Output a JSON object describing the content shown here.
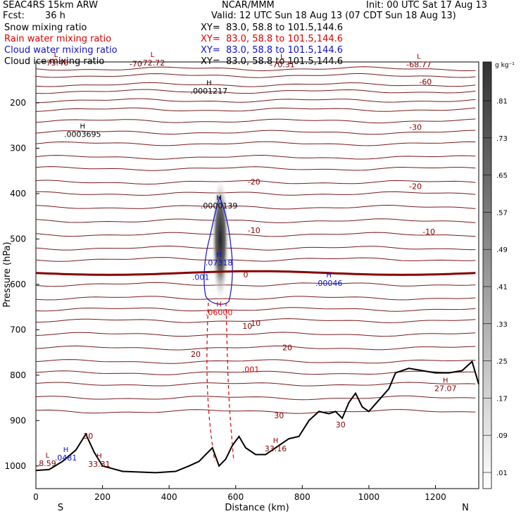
{
  "header": {
    "model": "SEAC4RS 15km ARW",
    "center": "NCAR/MMM",
    "init": "Init: 00 UTC Sat 17 Aug 13",
    "fcst_label": "Fcst:",
    "fcst_value": "36 h",
    "valid": "Valid: 12 UTC Sun 18 Aug 13 (07 CDT Sun 18 Aug 13)"
  },
  "fields": [
    {
      "name": "Snow mixing ratio",
      "xy": "XY=  83.0, 58.8 to 101.5,144.6",
      "color": "#000000"
    },
    {
      "name": "Rain water mixing ratio",
      "xy": "XY=  83.0, 58.8 to 101.5,144.6",
      "color": "#dd0000"
    },
    {
      "name": "Cloud water mixing ratio",
      "xy": "XY=  83.0, 58.8 to 101.5,144.6",
      "color": "#1010cc"
    },
    {
      "name": "Cloud ice mixing ratio",
      "xy": "XY=  83.0, 58.8 to 101.5,144.6",
      "color": "#000000"
    }
  ],
  "chart_data": {
    "type": "cross-section",
    "xlabel": "Distance (km)",
    "ylabel": "Pressure (hPa)",
    "xlim": [
      0,
      1330
    ],
    "ylim": [
      1050,
      110
    ],
    "x_ticks": [
      "0",
      "200",
      "400",
      "600",
      "800",
      "1000",
      "1200"
    ],
    "y_ticks": [
      "200",
      "300",
      "400",
      "500",
      "600",
      "700",
      "800",
      "900",
      "1000"
    ],
    "endpoints": {
      "left": "S",
      "right": "N"
    },
    "colorbar": {
      "unit": "g kg⁻¹",
      "ticks": [
        ".01",
        ".09",
        ".17",
        ".25",
        ".33",
        ".41",
        ".49",
        ".57",
        ".65",
        ".73",
        ".81"
      ]
    },
    "temperature_contour_labels": [
      {
        "text": "-70",
        "x": 300,
        "p": 120
      },
      {
        "text": "-60",
        "x": 1170,
        "p": 160
      },
      {
        "text": "-30",
        "x": 1140,
        "p": 260
      },
      {
        "text": "-20",
        "x": 655,
        "p": 380
      },
      {
        "text": "-20",
        "x": 1140,
        "p": 390
      },
      {
        "text": "-10",
        "x": 655,
        "p": 487
      },
      {
        "text": "-10",
        "x": 1180,
        "p": 490
      },
      {
        "text": "0",
        "x": 630,
        "p": 585
      },
      {
        "text": "10",
        "x": 635,
        "p": 698
      },
      {
        "text": "10",
        "x": 660,
        "p": 692
      },
      {
        "text": "20",
        "x": 480,
        "p": 760
      },
      {
        "text": "20",
        "x": 755,
        "p": 745
      },
      {
        "text": "30",
        "x": 730,
        "p": 895
      },
      {
        "text": "30",
        "x": 157,
        "p": 940
      },
      {
        "text": "30",
        "x": 915,
        "p": 915
      }
    ],
    "extrema": [
      {
        "type": "L",
        "value": "-73.46",
        "x": 60,
        "p": 118,
        "color": "#880000"
      },
      {
        "type": "L",
        "value": "-72.72",
        "x": 350,
        "p": 118,
        "color": "#880000"
      },
      {
        "type": "L",
        "value": "-70.31",
        "x": 740,
        "p": 122,
        "color": "#880000"
      },
      {
        "type": "L",
        "value": "-68.77",
        "x": 1150,
        "p": 122,
        "color": "#880000"
      },
      {
        "type": "H",
        "value": ".0001217",
        "x": 520,
        "p": 180,
        "color": "#000000"
      },
      {
        "type": "H",
        "value": ".0003695",
        "x": 140,
        "p": 275,
        "color": "#000000"
      },
      {
        "type": "H",
        "value": ".0000139",
        "x": 550,
        "p": 433,
        "color": "#000000"
      },
      {
        "type": "H",
        "value": ".07318",
        "x": 550,
        "p": 558,
        "color": "#1010cc"
      },
      {
        "type": "H",
        "value": ".00046",
        "x": 880,
        "p": 603,
        "color": "#1010cc"
      },
      {
        "type": "H",
        "value": ".06000",
        "x": 550,
        "p": 668,
        "color": "#dd0000"
      },
      {
        "type": "H",
        "value": "27.07",
        "x": 1230,
        "p": 835,
        "color": "#880000"
      },
      {
        "type": "H",
        "value": "33.16",
        "x": 720,
        "p": 968,
        "color": "#880000"
      },
      {
        "type": "H",
        "value": "33.31",
        "x": 190,
        "p": 1002,
        "color": "#880000"
      },
      {
        "type": "H",
        "value": ".0481",
        "x": 90,
        "p": 988,
        "color": "#1010cc"
      },
      {
        "type": "L",
        "value": "8.59",
        "x": 35,
        "p": 1000,
        "color": "#880000"
      }
    ],
    "cloud_contour_labels": [
      {
        "text": ".001",
        "x": 495,
        "p": 590,
        "color": "#1010cc"
      },
      {
        "text": ".001",
        "x": 645,
        "p": 793,
        "color": "#dd0000"
      }
    ],
    "terrain_pressure": [
      [
        0,
        1010
      ],
      [
        40,
        1008
      ],
      [
        80,
        990
      ],
      [
        120,
        965
      ],
      [
        150,
        930
      ],
      [
        175,
        970
      ],
      [
        200,
        1000
      ],
      [
        260,
        1012
      ],
      [
        360,
        1015
      ],
      [
        420,
        1012
      ],
      [
        460,
        1000
      ],
      [
        490,
        990
      ],
      [
        510,
        975
      ],
      [
        530,
        960
      ],
      [
        550,
        1000
      ],
      [
        570,
        985
      ],
      [
        590,
        955
      ],
      [
        610,
        935
      ],
      [
        630,
        960
      ],
      [
        660,
        975
      ],
      [
        690,
        975
      ],
      [
        720,
        960
      ],
      [
        760,
        940
      ],
      [
        790,
        935
      ],
      [
        820,
        900
      ],
      [
        850,
        880
      ],
      [
        880,
        885
      ],
      [
        900,
        880
      ],
      [
        920,
        895
      ],
      [
        940,
        860
      ],
      [
        960,
        840
      ],
      [
        980,
        870
      ],
      [
        1000,
        880
      ],
      [
        1030,
        855
      ],
      [
        1060,
        830
      ],
      [
        1080,
        795
      ],
      [
        1120,
        785
      ],
      [
        1160,
        790
      ],
      [
        1200,
        795
      ],
      [
        1240,
        795
      ],
      [
        1280,
        790
      ],
      [
        1310,
        770
      ],
      [
        1330,
        820
      ]
    ],
    "freezing_level_hpa": 575
  }
}
